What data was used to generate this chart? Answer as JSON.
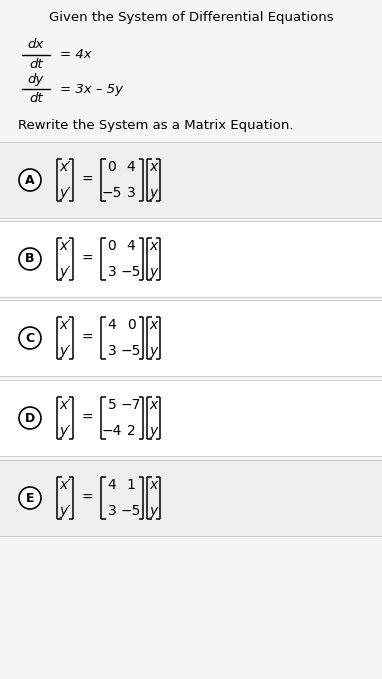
{
  "title": "Given the System of Differential Equations",
  "eq1_num": "dx",
  "eq1_den": "dt",
  "eq1_rhs": "= 4x",
  "eq2_num": "dy",
  "eq2_den": "dt",
  "eq2_rhs": "= 3x – 5y",
  "subtitle": "Rewrite the System as a Matrix Equation.",
  "options": [
    {
      "label": "A",
      "matrix_str": [
        [
          "0",
          "4"
        ],
        [
          "−5",
          "3"
        ]
      ]
    },
    {
      "label": "B",
      "matrix_str": [
        [
          "0",
          "4"
        ],
        [
          "3",
          "−5"
        ]
      ]
    },
    {
      "label": "C",
      "matrix_str": [
        [
          "4",
          "0"
        ],
        [
          "3",
          "−5"
        ]
      ]
    },
    {
      "label": "D",
      "matrix_str": [
        [
          "5",
          "−7"
        ],
        [
          "−4",
          "2"
        ]
      ]
    },
    {
      "label": "E",
      "matrix_str": [
        [
          "4",
          "1"
        ],
        [
          "3",
          "−5"
        ]
      ]
    }
  ],
  "bg_color": "#f5f5f5",
  "option_bg_colors": [
    "#efefef",
    "#ffffff",
    "#ffffff",
    "#ffffff",
    "#efefef"
  ],
  "text_color": "#000000",
  "font_size_title": 9.5,
  "font_size_body": 9.5,
  "font_size_math": 10,
  "font_size_matrix": 10,
  "fig_w": 3.82,
  "fig_h": 6.79,
  "dpi": 100
}
